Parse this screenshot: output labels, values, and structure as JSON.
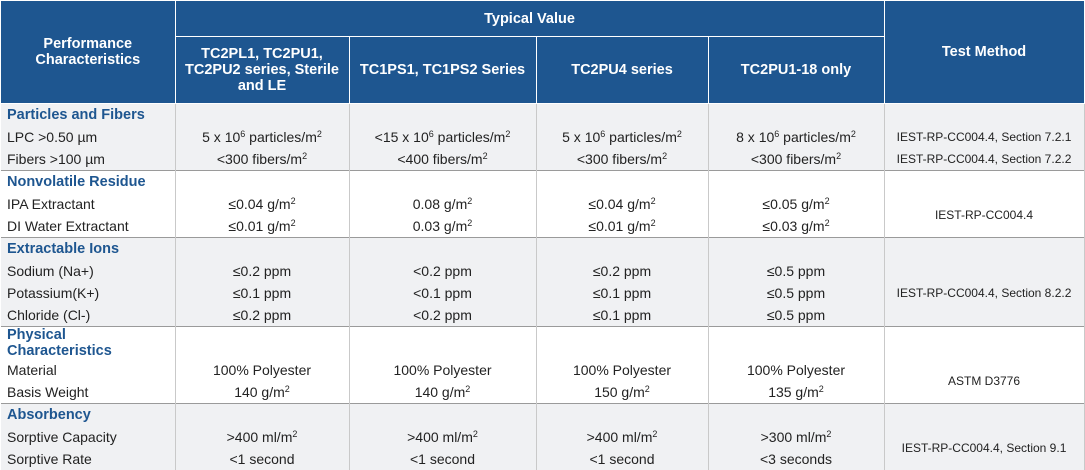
{
  "header": {
    "performance": "Performance Characteristics",
    "typical_value": "Typical Value",
    "test_method": "Test Method",
    "columns": [
      "TC2PL1, TC2PU1, TC2PU2 series, Sterile and LE",
      "TC1PS1, TC1PS2 Series",
      "TC2PU4 series",
      "TC2PU1-18 only"
    ]
  },
  "sections": {
    "particles": {
      "title": "Particles and Fibers",
      "rows": [
        {
          "label": "LPC >0.50 µm",
          "v": [
            "5 x 10",
            "<15 x 10",
            "5 x 10",
            "8 x 10"
          ],
          "exp": "6",
          "unit": " particles/m",
          "sq": "2",
          "method": "IEST-RP-CC004.4, Section 7.2.1"
        },
        {
          "label": "Fibers >100 µm",
          "v": [
            "<300 fibers/m",
            "<400 fibers/m",
            "<300 fibers/m",
            "<300 fibers/m"
          ],
          "sq": "2",
          "method": "IEST-RP-CC004.4, Section 7.2.2"
        }
      ]
    },
    "nvr": {
      "title": "Nonvolatile Residue",
      "method": "IEST-RP-CC004.4",
      "rows": [
        {
          "label": "IPA Extractant",
          "v": [
            "≤0.04 g/m",
            "0.08 g/m",
            "≤0.04 g/m",
            "≤0.05 g/m"
          ],
          "sq": "2"
        },
        {
          "label": "DI Water Extractant",
          "v": [
            "≤0.01 g/m",
            "0.03 g/m",
            "≤0.01 g/m",
            "≤0.03 g/m"
          ],
          "sq": "2"
        }
      ]
    },
    "ions": {
      "title": "Extractable Ions",
      "method": "IEST-RP-CC004.4, Section 8.2.2",
      "rows": [
        {
          "label": "Sodium (Na+)",
          "v": [
            "≤0.2 ppm",
            "<0.2 ppm",
            "≤0.2 ppm",
            "≤0.5 ppm"
          ]
        },
        {
          "label": "Potassium(K+)",
          "v": [
            "≤0.1 ppm",
            "<0.1 ppm",
            "≤0.1 ppm",
            "≤0.5 ppm"
          ]
        },
        {
          "label": "Chloride (Cl-)",
          "v": [
            "≤0.2 ppm",
            "<0.2 ppm",
            "≤0.1 ppm",
            "≤0.5 ppm"
          ]
        }
      ]
    },
    "physical": {
      "title": "Physical Characteristics",
      "method": "ASTM D3776",
      "rows": [
        {
          "label": "Material",
          "v": [
            "100% Polyester",
            "100% Polyester",
            "100% Polyester",
            "100% Polyester"
          ]
        },
        {
          "label": "Basis Weight",
          "v": [
            "140 g/m",
            "140 g/m",
            "150 g/m",
            "135 g/m"
          ],
          "sq": "2"
        }
      ]
    },
    "absorbency": {
      "title": "Absorbency",
      "method": "IEST-RP-CC004.4, Section 9.1",
      "rows": [
        {
          "label": "Sorptive Capacity",
          "v": [
            ">400 ml/m",
            ">400 ml/m",
            ">400 ml/m",
            ">300 ml/m"
          ],
          "sq": "2"
        },
        {
          "label": "Sorptive Rate",
          "v": [
            "<1 second",
            "<1 second",
            "<1 second",
            "<3 seconds"
          ]
        }
      ]
    }
  },
  "colors": {
    "header_bg": "#1e5690",
    "section_text": "#1e5690",
    "alt_row_bg": "#f0f1f3"
  }
}
